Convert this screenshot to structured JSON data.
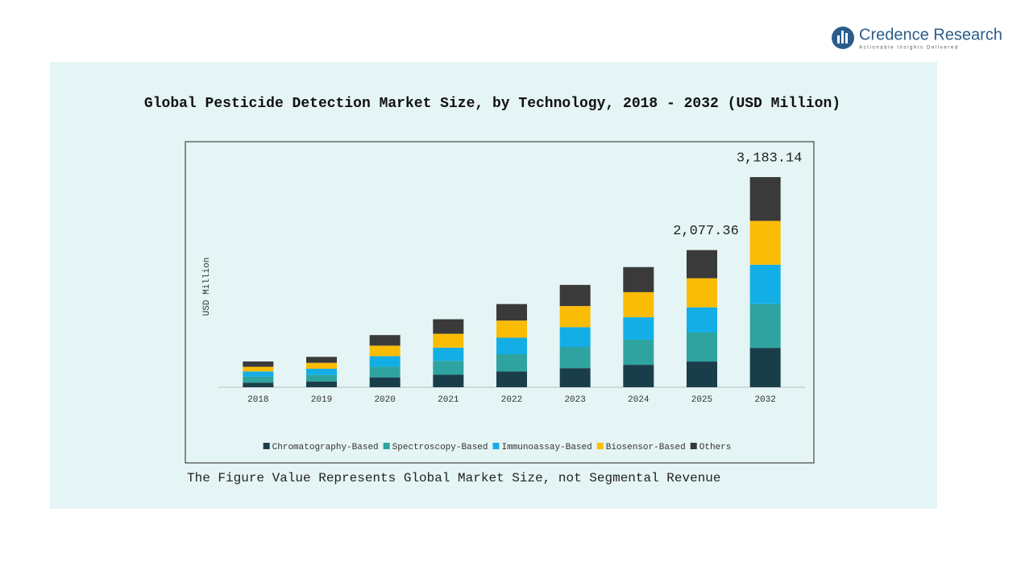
{
  "logo": {
    "name": "Credence Research",
    "tagline": "Actionable Insights Delivered"
  },
  "note": "The Figure Value Represents Global Market Size, not Segmental Revenue",
  "chart_data": {
    "type": "stacked_bar",
    "title": "Global Pesticide Detection Market Size, by Technology, 2018 - 2032 (USD Million)",
    "y_label": "USD Million",
    "categories": [
      "2018",
      "2019",
      "2020",
      "2021",
      "2022",
      "2023",
      "2024",
      "2025",
      "2032"
    ],
    "series": [
      {
        "name": "Chromatography-Based",
        "color": "#1a3d4a",
        "values": [
          70,
          85,
          150,
          190,
          240,
          290,
          340,
          389.5,
          596
        ]
      },
      {
        "name": "Spectroscopy-Based",
        "color": "#2ea3a0",
        "values": [
          90,
          100,
          160,
          210,
          260,
          320,
          380,
          440.2,
          664
        ]
      },
      {
        "name": "Immunoassay-Based",
        "color": "#14aee6",
        "values": [
          80,
          95,
          160,
          200,
          250,
          300,
          340,
          380.6,
          596
        ]
      },
      {
        "name": "Biosensor-Based",
        "color": "#fbbc05",
        "values": [
          70,
          90,
          160,
          210,
          260,
          320,
          380,
          440.3,
          664
        ]
      },
      {
        "name": "Others",
        "color": "#3a3a3a",
        "values": [
          80,
          90,
          160,
          220,
          250,
          320,
          380,
          426.76,
          663.14
        ]
      }
    ],
    "totals": {
      "categories": [
        "2025",
        "2032"
      ],
      "values": [
        2077.36,
        3183.14
      ],
      "value_labels": [
        "2,077.36",
        "3,183.14"
      ]
    },
    "ylim": [
      0,
      3500
    ],
    "legend": "bottom"
  }
}
